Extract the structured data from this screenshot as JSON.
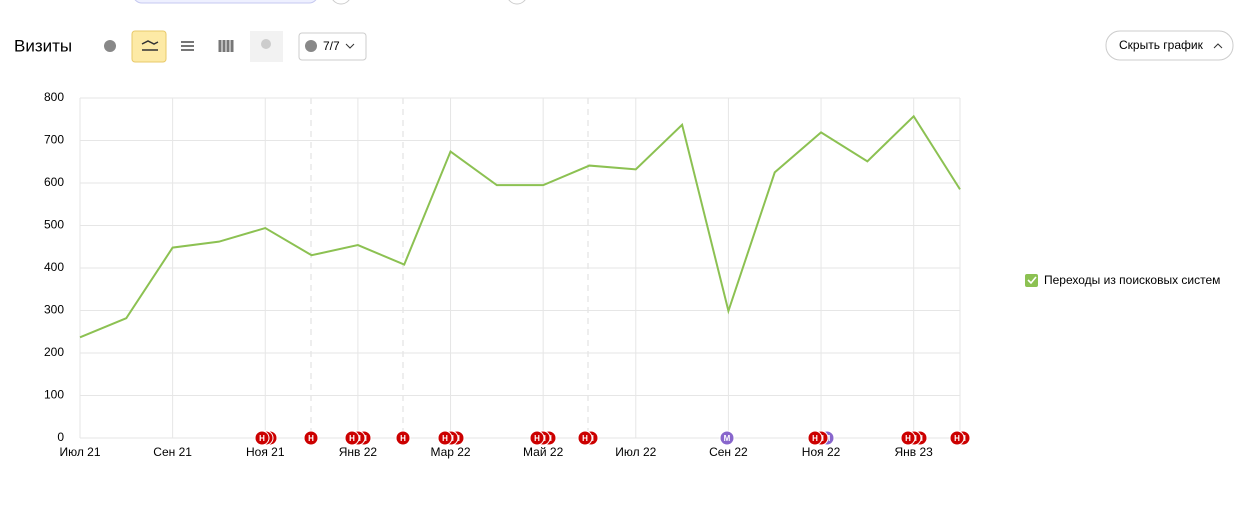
{
  "header": {
    "title": "Визиты",
    "comments_counter": "7/7",
    "hide_button": "Скрыть график"
  },
  "chart_data": {
    "type": "line",
    "categories": [
      "Июл 21",
      null,
      "Сен 21",
      null,
      "Ноя 21",
      null,
      "Янв 22",
      null,
      "Мар 22",
      null,
      "Май 22",
      null,
      "Июл 22",
      null,
      "Сен 22",
      null,
      "Ноя 22",
      null,
      "Янв 23",
      null
    ],
    "series": [
      {
        "name": "Переходы из поисковых систем",
        "color": "#8cc152",
        "values": [
          237,
          282,
          448,
          462,
          494,
          430,
          454,
          408,
          674,
          595,
          595,
          641,
          632,
          737,
          299,
          625,
          719,
          651,
          757,
          585
        ]
      }
    ],
    "ylim": [
      0,
      800
    ],
    "yticks": [
      0,
      100,
      200,
      300,
      400,
      500,
      600,
      700,
      800
    ],
    "grid": true,
    "legend": "right",
    "annotation_marks": [
      "Н",
      "М"
    ]
  }
}
